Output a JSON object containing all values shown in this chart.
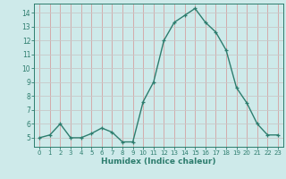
{
  "x": [
    0,
    1,
    2,
    3,
    4,
    5,
    6,
    7,
    8,
    9,
    10,
    11,
    12,
    13,
    14,
    15,
    16,
    17,
    18,
    19,
    20,
    21,
    22,
    23
  ],
  "y": [
    5.0,
    5.2,
    6.0,
    5.0,
    5.0,
    5.3,
    5.7,
    5.4,
    4.7,
    4.7,
    7.6,
    9.0,
    12.0,
    13.3,
    13.8,
    14.3,
    13.3,
    12.6,
    11.3,
    8.6,
    7.5,
    6.0,
    5.2,
    5.2
  ],
  "xlabel": "Humidex (Indice chaleur)",
  "xlim": [
    -0.5,
    23.5
  ],
  "ylim": [
    4.35,
    14.65
  ],
  "yticks": [
    5,
    6,
    7,
    8,
    9,
    10,
    11,
    12,
    13,
    14
  ],
  "xticks": [
    0,
    1,
    2,
    3,
    4,
    5,
    6,
    7,
    8,
    9,
    10,
    11,
    12,
    13,
    14,
    15,
    16,
    17,
    18,
    19,
    20,
    21,
    22,
    23
  ],
  "line_color": "#2d7d6e",
  "marker": "+",
  "bg_color": "#ceeaea",
  "grid_color_v": "#d4a0a0",
  "grid_color_h": "#c8c8c8",
  "axis_color": "#2d7d6e",
  "label_color": "#2d7d6e",
  "tick_color": "#2d7d6e"
}
